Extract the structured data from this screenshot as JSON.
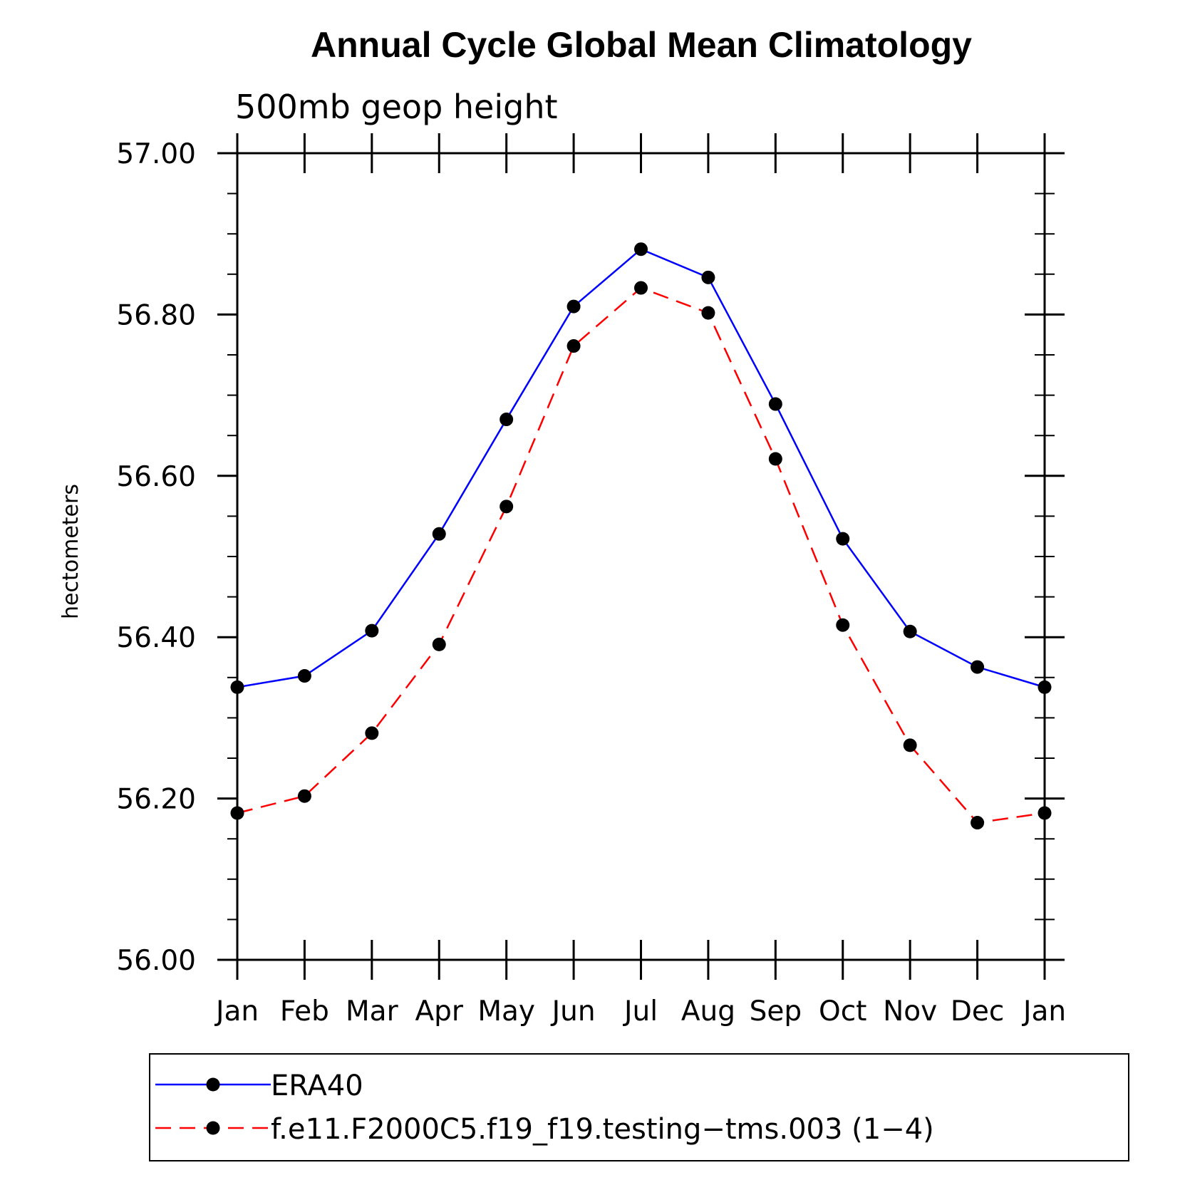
{
  "chart_data": {
    "type": "line",
    "title": "Annual Cycle Global Mean Climatology",
    "subtitle": "500mb geop height",
    "ylabel": "hectometers",
    "xlabel": "",
    "categories": [
      "Jan",
      "Feb",
      "Mar",
      "Apr",
      "May",
      "Jun",
      "Jul",
      "Aug",
      "Sep",
      "Oct",
      "Nov",
      "Dec",
      "Jan"
    ],
    "ylim": [
      56.0,
      57.0
    ],
    "yticks": [
      "57.00",
      "56.80",
      "56.60",
      "56.40",
      "56.20",
      "56.00"
    ],
    "ytick_values": [
      57.0,
      56.8,
      56.6,
      56.4,
      56.2,
      56.0
    ],
    "y_minor_step": 0.05,
    "grid": false,
    "legend_position": "bottom",
    "series": [
      {
        "name": "ERA40",
        "color": "#0000ff",
        "dash": "solid",
        "marker": "filled-circle",
        "values": [
          56.338,
          56.352,
          56.408,
          56.528,
          56.67,
          56.81,
          56.881,
          56.846,
          56.689,
          56.522,
          56.407,
          56.363,
          56.338
        ]
      },
      {
        "name": "f.e11.F2000C5.f19_f19.testing−tms.003 (1−4)",
        "color": "#ff0000",
        "dash": "dashed",
        "marker": "filled-circle",
        "values": [
          56.182,
          56.203,
          56.281,
          56.391,
          56.562,
          56.761,
          56.833,
          56.802,
          56.621,
          56.415,
          56.266,
          56.17,
          56.182
        ]
      }
    ]
  }
}
